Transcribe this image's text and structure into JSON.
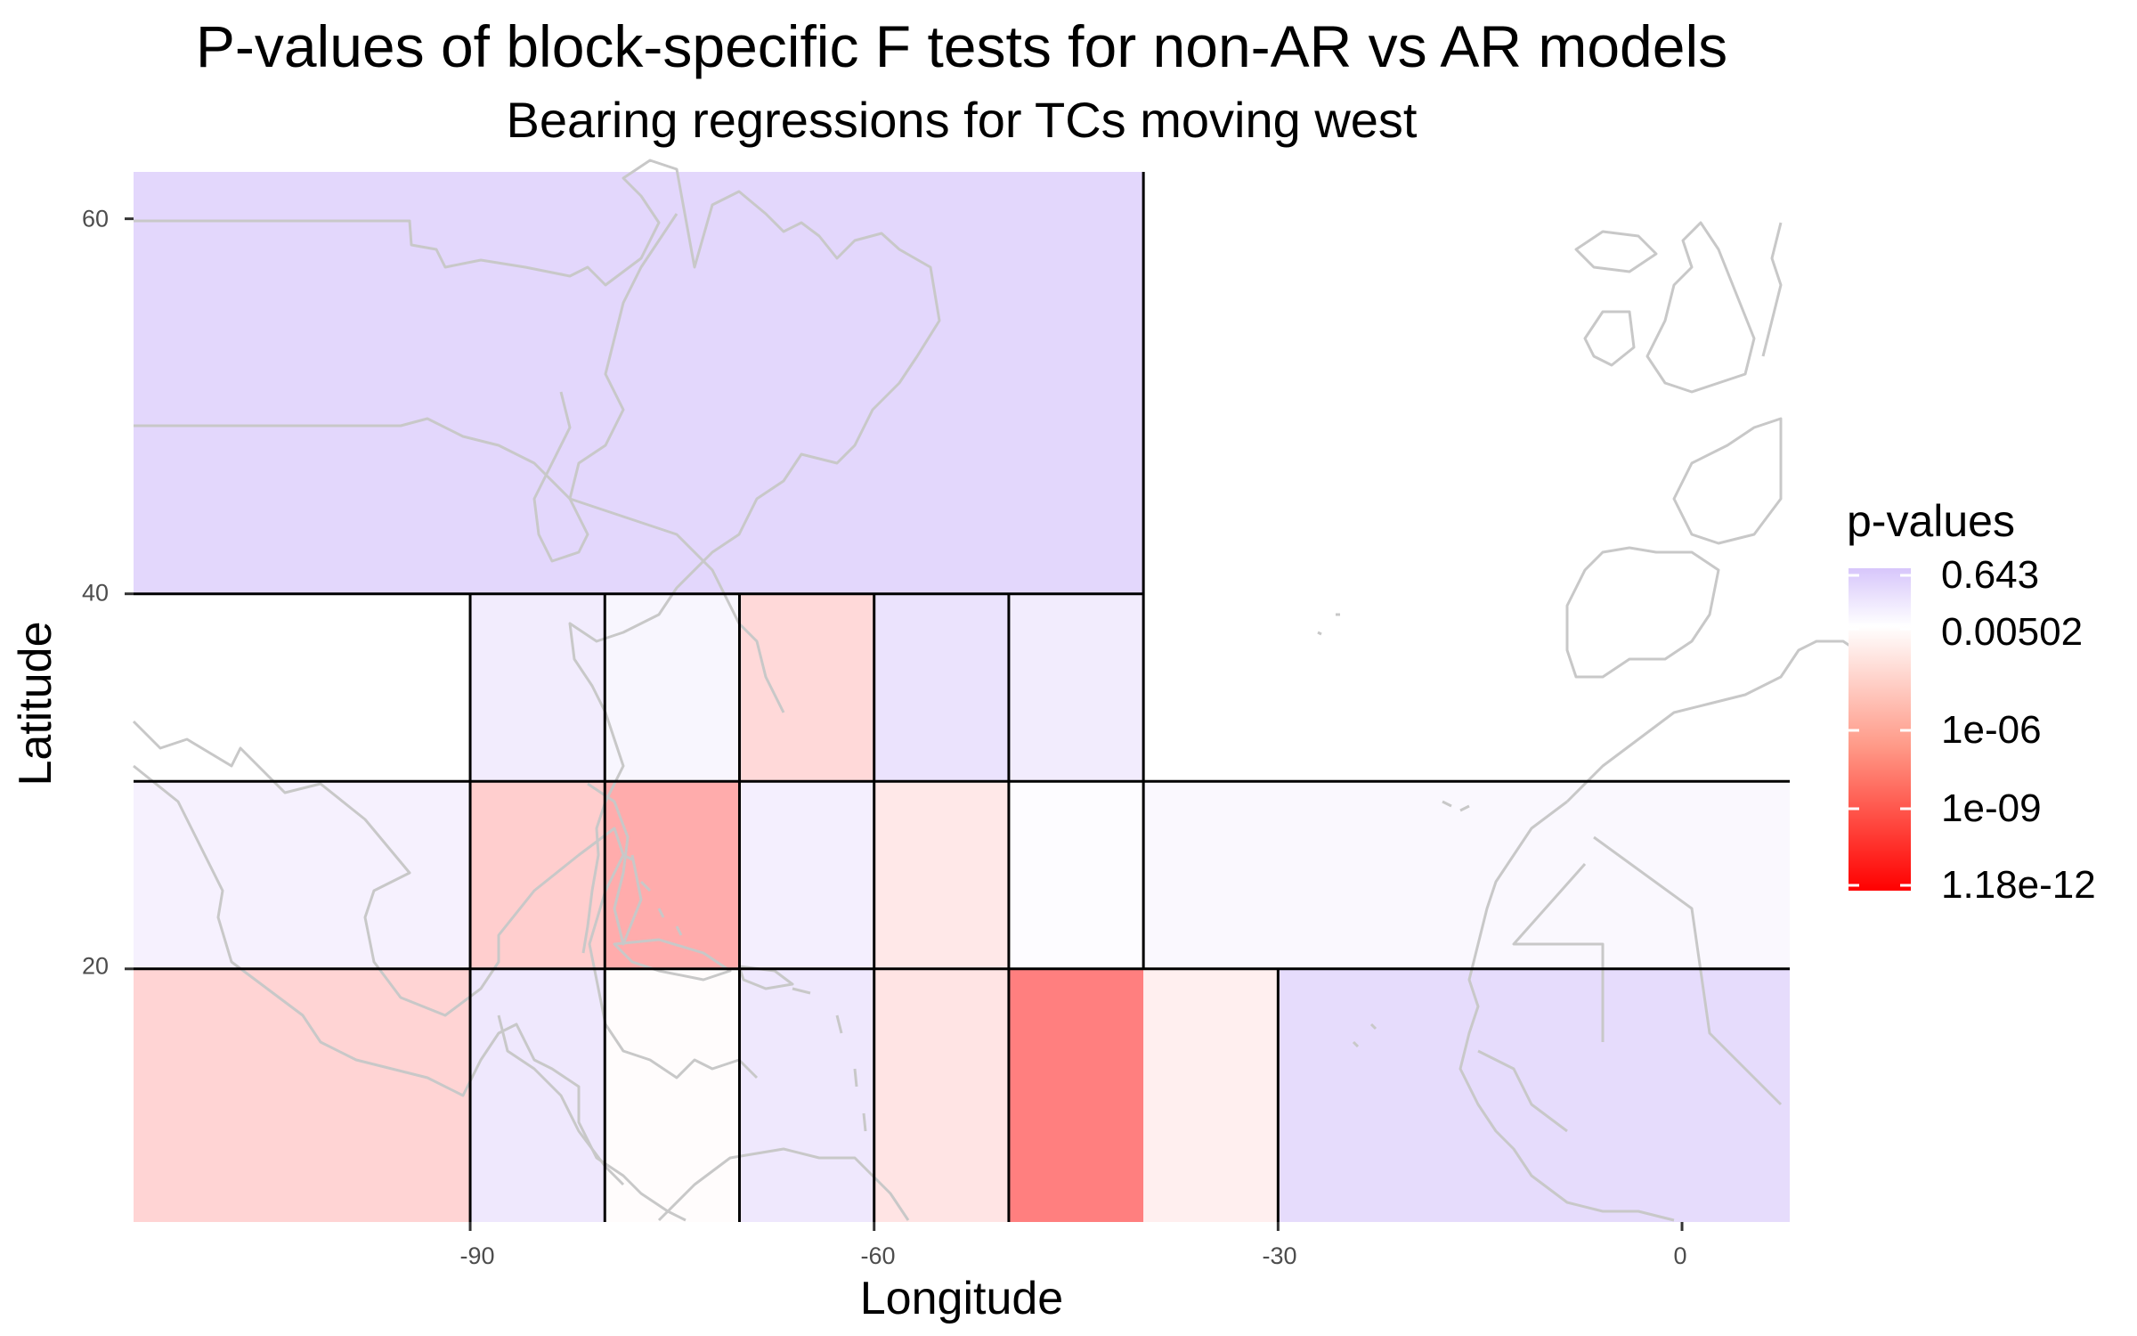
{
  "title": "P-values of block-specific F tests for non-AR vs AR models",
  "subtitle": "Bearing regressions for TCs moving west",
  "xlabel": "Longitude",
  "ylabel": "Latitude",
  "x_ticks": [
    "-90",
    "-60",
    "-30",
    "0"
  ],
  "y_ticks": [
    "60",
    "40",
    "20"
  ],
  "legend": {
    "title": "p-values",
    "labels": [
      "0.643",
      "0.00502",
      "1e-06",
      "1e-09",
      "1.18e-12"
    ],
    "colors": {
      "high": "#d7c6fb",
      "mid": "#ffffff",
      "low": "#ff0000"
    }
  },
  "land_color": "#c8c8c8",
  "chart_data": {
    "type": "heatmap",
    "title": "P-values of block-specific F tests for non-AR vs AR models",
    "subtitle": "Bearing regressions for TCs moving west",
    "xlabel": "Longitude",
    "ylabel": "Latitude",
    "xlim": [
      -115,
      8
    ],
    "ylim": [
      6.5,
      62.5
    ],
    "color_scale": "log10 p-value",
    "legend_position": "right",
    "grid": false,
    "blocks": [
      {
        "lon": [
          -115,
          -40
        ],
        "lat": [
          40,
          62.5
        ],
        "log10p": -0.55
      },
      {
        "lon": [
          -115,
          -90
        ],
        "lat": [
          30,
          40
        ],
        "log10p": -2.3
      },
      {
        "lon": [
          -90,
          -80
        ],
        "lat": [
          30,
          40
        ],
        "log10p": -1.5
      },
      {
        "lon": [
          -80,
          -70
        ],
        "lat": [
          30,
          40
        ],
        "log10p": -1.9
      },
      {
        "lon": [
          -70,
          -60
        ],
        "lat": [
          30,
          40
        ],
        "log10p": -4.0
      },
      {
        "lon": [
          -60,
          -50
        ],
        "lat": [
          30,
          40
        ],
        "log10p": -1.1
      },
      {
        "lon": [
          -50,
          -40
        ],
        "lat": [
          30,
          40
        ],
        "log10p": -1.5
      },
      {
        "lon": [
          -115,
          -90
        ],
        "lat": [
          20,
          30
        ],
        "log10p": -1.7
      },
      {
        "lon": [
          -90,
          -80
        ],
        "lat": [
          20,
          30
        ],
        "log10p": -4.5
      },
      {
        "lon": [
          -80,
          -70
        ],
        "lat": [
          20,
          30
        ],
        "log10p": -6.0
      },
      {
        "lon": [
          -70,
          -60
        ],
        "lat": [
          20,
          30
        ],
        "log10p": -1.6
      },
      {
        "lon": [
          -60,
          -50
        ],
        "lat": [
          20,
          30
        ],
        "log10p": -3.3
      },
      {
        "lon": [
          -50,
          -40
        ],
        "lat": [
          20,
          30
        ],
        "log10p": -2.2
      },
      {
        "lon": [
          -40,
          8
        ],
        "lat": [
          20,
          30
        ],
        "log10p": -2.0
      },
      {
        "lon": [
          -115,
          -90
        ],
        "lat": [
          6.5,
          20
        ],
        "log10p": -4.2
      },
      {
        "lon": [
          -90,
          -80
        ],
        "lat": [
          6.5,
          20
        ],
        "log10p": -1.3
      },
      {
        "lon": [
          -80,
          -70
        ],
        "lat": [
          6.5,
          20
        ],
        "log10p": -2.4
      },
      {
        "lon": [
          -70,
          -60
        ],
        "lat": [
          6.5,
          20
        ],
        "log10p": -1.3
      },
      {
        "lon": [
          -60,
          -50
        ],
        "lat": [
          6.5,
          20
        ],
        "log10p": -3.5
      },
      {
        "lon": [
          -50,
          -40
        ],
        "lat": [
          6.5,
          20
        ],
        "log10p": -8.0
      },
      {
        "lon": [
          -40,
          -30
        ],
        "lat": [
          6.5,
          20
        ],
        "log10p": -3.0
      },
      {
        "lon": [
          -30,
          8
        ],
        "lat": [
          6.5,
          20
        ],
        "log10p": -0.8
      }
    ]
  }
}
